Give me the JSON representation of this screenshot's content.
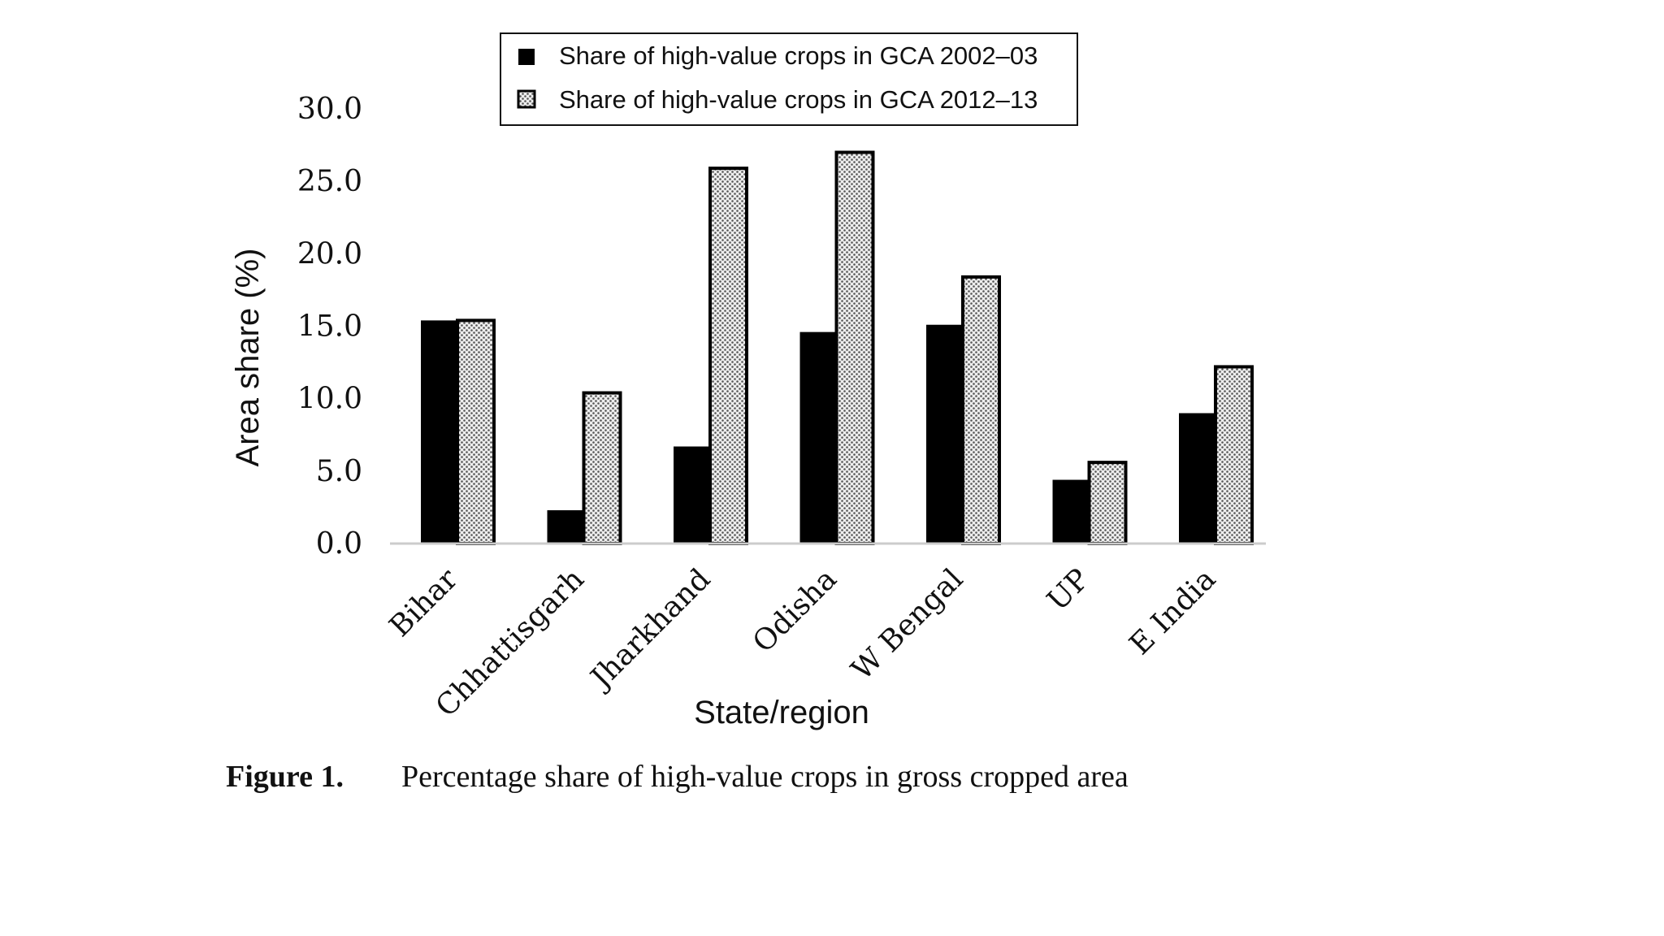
{
  "chart_data": {
    "type": "bar",
    "title": "",
    "xlabel": "State/region",
    "ylabel": "Area share (%)",
    "ylim": [
      0,
      30
    ],
    "yticks": [
      "0.0",
      "5.0",
      "10.0",
      "15.0",
      "20.0",
      "25.0",
      "30.0"
    ],
    "categories": [
      "Bihar",
      "Chhattisgarh",
      "Jharkhand",
      "Odisha",
      "W Bengal",
      "UP",
      "E India"
    ],
    "series": [
      {
        "name": "Share of high-value crops in GCA 2002–03",
        "color": "#000000",
        "pattern": "solid",
        "values": [
          15.4,
          2.3,
          6.7,
          14.6,
          15.1,
          4.4,
          9.0
        ]
      },
      {
        "name": "Share of high-value crops in GCA 2012–13",
        "color": "#bbbbbb",
        "pattern": "dotted",
        "values": [
          15.4,
          10.4,
          25.9,
          27.0,
          18.4,
          5.6,
          12.2
        ]
      }
    ],
    "grid": false,
    "legend_position": "top"
  },
  "caption": {
    "label": "Figure 1.",
    "text": "Percentage share of high-value crops in gross cropped area"
  }
}
